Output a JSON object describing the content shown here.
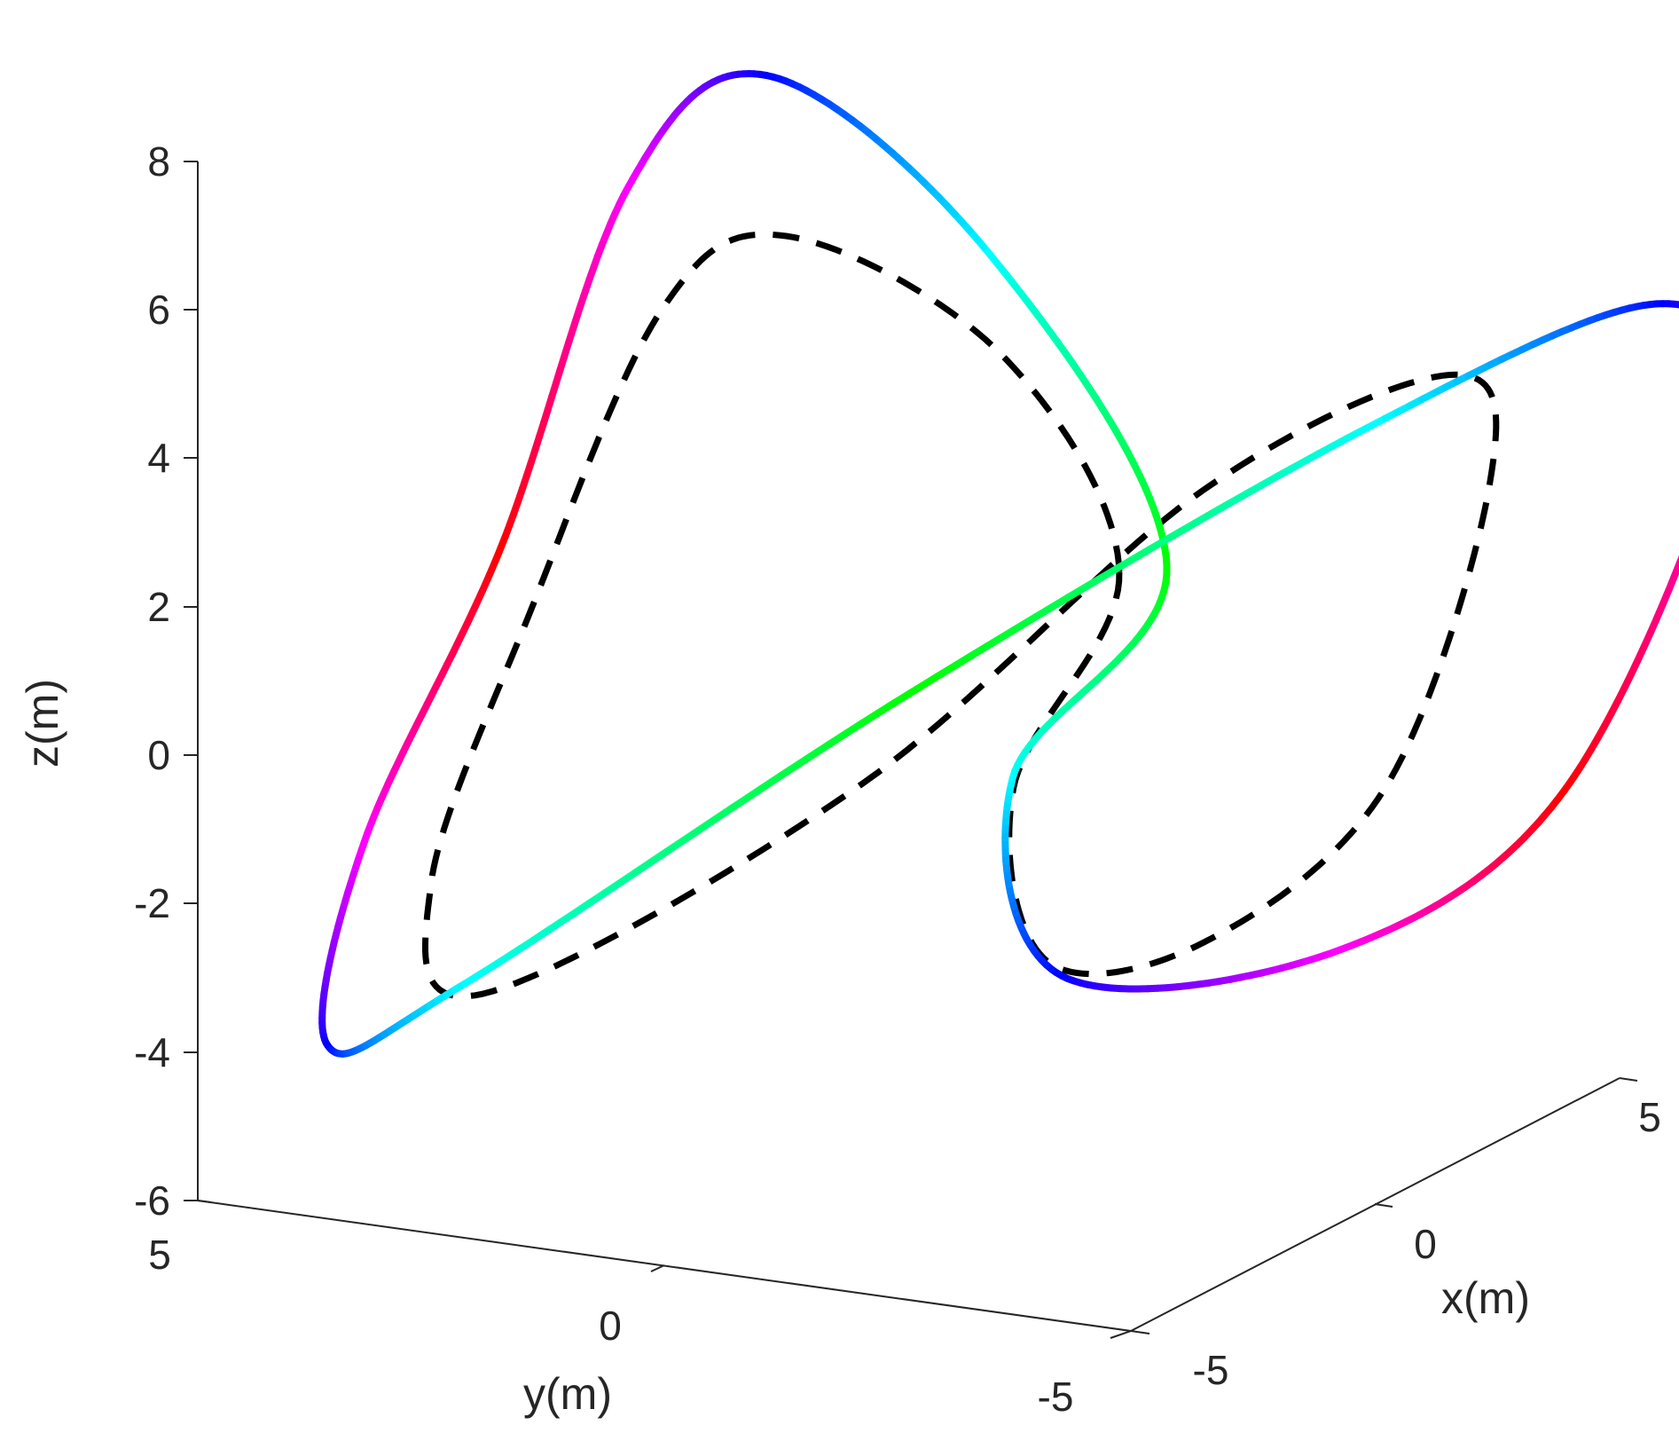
{
  "chart_data": {
    "type": "line",
    "projection": "3d",
    "title": "",
    "xlabel": "x(m)",
    "ylabel": "y(m)",
    "zlabel": "z(m)",
    "xlim": [
      -5,
      5
    ],
    "ylim": [
      -5,
      5
    ],
    "zlim": [
      -6,
      8
    ],
    "x_ticks": [
      -5,
      0,
      5
    ],
    "y_ticks": [
      5,
      0,
      -5
    ],
    "z_ticks": [
      8,
      6,
      4,
      2,
      0,
      -2,
      -4,
      -6
    ],
    "x_tick_labels": [
      "-5",
      "0",
      "5"
    ],
    "y_tick_labels": [
      "5",
      "0",
      "-5"
    ],
    "z_tick_labels": [
      "8",
      "6",
      "4",
      "2",
      "0",
      "-2",
      "-4",
      "-6"
    ],
    "grid": false,
    "series": [
      {
        "style": "solid",
        "color_mode": "hsv-colormap",
        "color_stops": [
          "#00ff00",
          "#00ffff",
          "#0000ff",
          "#ff00ff",
          "#ff0000",
          "#ff00ff",
          "#0000ff",
          "#00ffff",
          "#00ff00",
          "#00ffff",
          "#0000ff",
          "#ff00ff",
          "#ff0000",
          "#ff00ff",
          "#0000ff",
          "#00ffff",
          "#00ff00"
        ],
        "points": [
          [
            2.8,
            -1.3,
            1.0
          ],
          [
            1.3,
            -0.2,
            5.5
          ],
          [
            -1.0,
            1.0,
            8.5
          ],
          [
            -2.3,
            1.8,
            7.3
          ],
          [
            -3.0,
            2.8,
            2.5
          ],
          [
            -3.5,
            4.0,
            -1.5
          ],
          [
            -3.3,
            4.5,
            -4.4
          ],
          [
            -2.4,
            3.5,
            -3.7
          ],
          [
            0.0,
            0.0,
            0.0
          ],
          [
            3.0,
            -3.4,
            3.2
          ],
          [
            5.5,
            -5.2,
            4.3
          ],
          [
            6.2,
            -5.5,
            2.5
          ],
          [
            5.4,
            -4.2,
            -2.4
          ],
          [
            3.8,
            -2.6,
            -4.3
          ],
          [
            1.6,
            -0.8,
            -4.2
          ],
          [
            0.6,
            -0.8,
            -1.2
          ],
          [
            2.8,
            -1.3,
            1.0
          ]
        ]
      },
      {
        "style": "dashed",
        "color": "#000000",
        "points": [
          [
            2.4,
            -1.0,
            1.0
          ],
          [
            1.3,
            -0.3,
            4.2
          ],
          [
            -0.6,
            1.0,
            6.2
          ],
          [
            -1.8,
            1.7,
            5.5
          ],
          [
            -2.6,
            2.7,
            1.5
          ],
          [
            -2.9,
            3.6,
            -2.2
          ],
          [
            -2.4,
            3.3,
            -3.8
          ],
          [
            0.0,
            0.5,
            -1.3
          ],
          [
            2.8,
            -1.7,
            2.1
          ],
          [
            4.7,
            -3.4,
            3.3
          ],
          [
            5.0,
            -3.6,
            1.7
          ],
          [
            4.2,
            -2.9,
            -2.2
          ],
          [
            2.8,
            -1.7,
            -4.0
          ],
          [
            1.3,
            -0.8,
            -3.9
          ],
          [
            1.0,
            -0.6,
            -1.5
          ],
          [
            2.4,
            -1.0,
            1.0
          ]
        ]
      }
    ]
  }
}
